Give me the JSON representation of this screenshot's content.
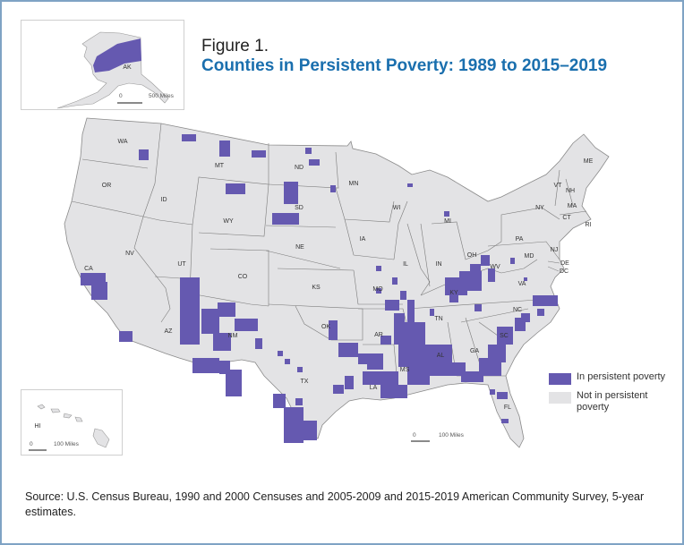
{
  "figure": {
    "label": "Figure 1.",
    "title": "Counties in Persistent Poverty: 1989 to 2015–2019"
  },
  "colors": {
    "in_poverty": "#6559b0",
    "not_in_poverty": "#e3e3e5",
    "title": "#1a6fae",
    "border": "#7fa3c4"
  },
  "legend": {
    "items": [
      {
        "label": "In persistent poverty",
        "color": "#6559b0"
      },
      {
        "label": "Not in persistent poverty",
        "color": "#e3e3e5"
      }
    ]
  },
  "insets": {
    "alaska": {
      "label": "AK",
      "scale_zero": "0",
      "scale_label": "500 Miles"
    },
    "hawaii": {
      "label": "HI",
      "scale_zero": "0",
      "scale_label": "100 Miles"
    }
  },
  "main_scale": {
    "zero": "0",
    "label": "100 Miles"
  },
  "states": [
    "WA",
    "OR",
    "CA",
    "NV",
    "ID",
    "MT",
    "WY",
    "UT",
    "CO",
    "AZ",
    "NM",
    "ND",
    "SD",
    "NE",
    "KS",
    "OK",
    "TX",
    "MN",
    "IA",
    "MO",
    "AR",
    "LA",
    "WI",
    "IL",
    "MS",
    "MI",
    "IN",
    "KY",
    "TN",
    "AL",
    "OH",
    "WV",
    "VA",
    "NC",
    "SC",
    "GA",
    "FL",
    "PA",
    "NY",
    "VT",
    "NH",
    "ME",
    "MA",
    "CT",
    "RI",
    "NJ",
    "DE",
    "MD",
    "DC"
  ],
  "source": "Source: U.S. Census Bureau, 1990 and 2000 Censuses and 2005-2009 and 2015-2019 American Community Survey, 5-year estimates."
}
